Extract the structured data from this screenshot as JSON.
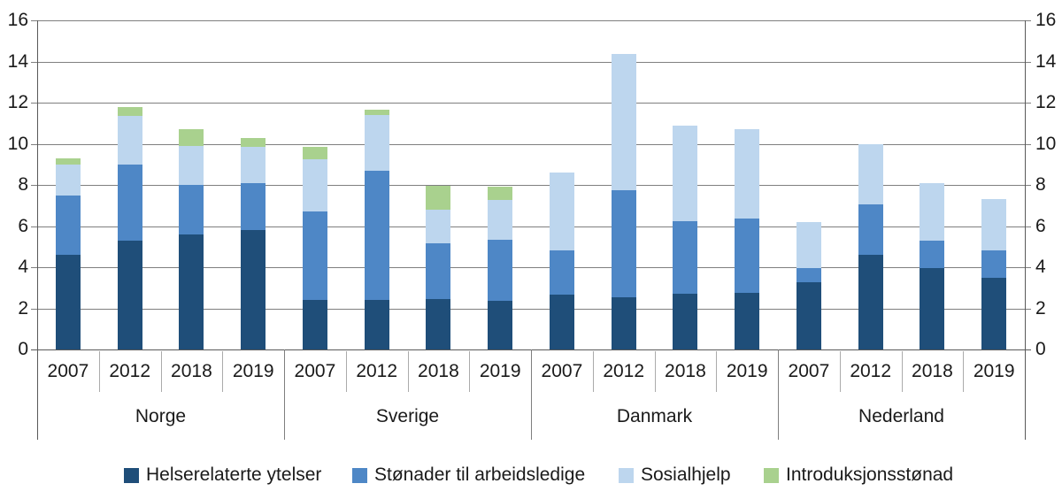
{
  "chart_data": {
    "type": "bar",
    "stacked": true,
    "title": "",
    "xlabel": "",
    "ylabel": "",
    "ylim": [
      0,
      16
    ],
    "yticks": [
      0,
      2,
      4,
      6,
      8,
      10,
      12,
      14,
      16
    ],
    "grid": true,
    "dual_axis_labels": true,
    "legend_position": "bottom",
    "groups": [
      {
        "label": "Norge",
        "years": [
          "2007",
          "2012",
          "2018",
          "2019"
        ]
      },
      {
        "label": "Sverige",
        "years": [
          "2007",
          "2012",
          "2018",
          "2019"
        ]
      },
      {
        "label": "Danmark",
        "years": [
          "2007",
          "2012",
          "2018",
          "2019"
        ]
      },
      {
        "label": "Nederland",
        "years": [
          "2007",
          "2012",
          "2018",
          "2019"
        ]
      }
    ],
    "series": [
      {
        "name": "Helserelaterte ytelser",
        "color": "#1F4E79",
        "values": [
          4.6,
          5.3,
          5.6,
          5.8,
          2.4,
          2.4,
          2.45,
          2.35,
          2.65,
          2.55,
          2.7,
          2.75,
          3.25,
          4.6,
          3.95,
          3.5
        ]
      },
      {
        "name": "Stønader til arbeidsledige",
        "color": "#4E87C6",
        "values": [
          2.9,
          3.7,
          2.4,
          2.3,
          4.3,
          6.3,
          2.7,
          3.0,
          2.15,
          5.2,
          3.55,
          3.6,
          0.7,
          2.45,
          1.35,
          1.3
        ]
      },
      {
        "name": "Sosialhjelp",
        "color": "#BDD6EE",
        "values": [
          1.5,
          2.35,
          1.9,
          1.75,
          2.55,
          2.7,
          1.65,
          1.9,
          3.8,
          6.6,
          4.65,
          4.35,
          2.25,
          2.95,
          2.8,
          2.5
        ]
      },
      {
        "name": "Introduksjonsstønad",
        "color": "#A9D18E",
        "values": [
          0.3,
          0.45,
          0.8,
          0.45,
          0.6,
          0.25,
          1.15,
          0.65,
          0,
          0,
          0,
          0,
          0,
          0,
          0,
          0
        ]
      }
    ],
    "colors": {
      "gridline": "#7F7F7F",
      "axis": "#595959",
      "year_separator": "#ABABAB",
      "group_separator": "#7F7F7F",
      "text": "#1A1A1A",
      "background": "#FFFFFF"
    }
  }
}
